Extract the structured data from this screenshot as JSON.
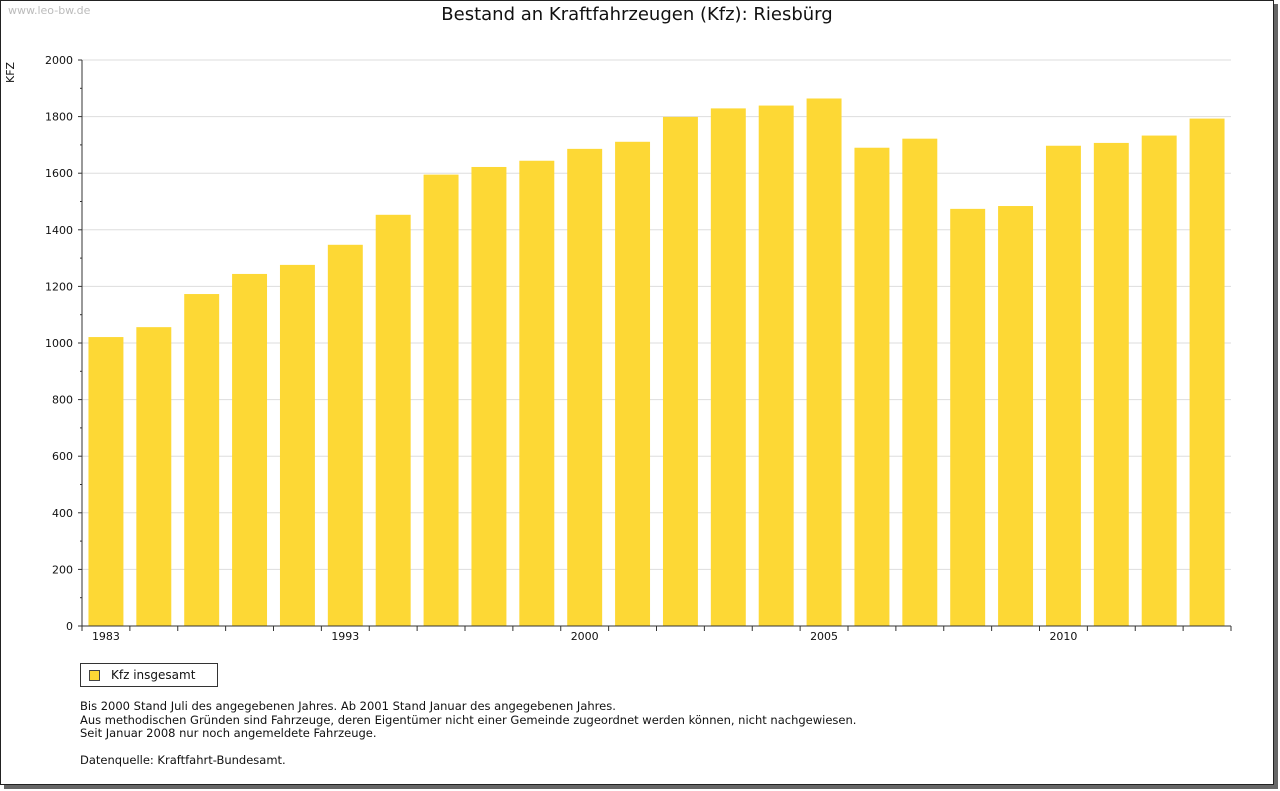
{
  "watermark": "www.leo-bw.de",
  "legend": {
    "label": "Kfz insgesamt"
  },
  "notes": [
    "Bis 2000 Stand Juli des angegebenen Jahres. Ab 2001 Stand Januar des angegebenen Jahres.",
    "Aus methodischen Gründen sind Fahrzeuge, deren Eigentümer nicht einer Gemeinde zugeordnet werden können, nicht nachgewiesen.",
    "Seit Januar 2008 nur noch angemeldete Fahrzeuge."
  ],
  "source": "Datenquelle: Kraftfahrt-Bundesamt.",
  "colors": {
    "bar": "#fdd835",
    "grid": "#dddddd",
    "axis": "#333333"
  },
  "chart_data": {
    "type": "bar",
    "title": "Bestand an Kraftfahrzeugen (Kfz): Riesbürg",
    "xlabel": "",
    "ylabel": "KFZ",
    "ylim": [
      0,
      2000
    ],
    "yticks": [
      0,
      200,
      400,
      600,
      800,
      1000,
      1200,
      1400,
      1600,
      1800,
      2000
    ],
    "grid": true,
    "legend_position": "bottom-left",
    "x_tick_labels": [
      "1983",
      "1993",
      "2000",
      "2005",
      "2010"
    ],
    "categories": [
      "1983",
      "1984",
      "1985",
      "1986",
      "1987",
      "1993",
      "1994",
      "1995",
      "1996",
      "1997",
      "2000",
      "2001",
      "2002",
      "2003",
      "2004",
      "2005",
      "2006",
      "2007",
      "2008",
      "2009",
      "2010",
      "2011",
      "2012",
      "2013"
    ],
    "series": [
      {
        "name": "Kfz insgesamt",
        "values": [
          1021,
          1056,
          1173,
          1244,
          1276,
          1347,
          1453,
          1595,
          1622,
          1644,
          1686,
          1711,
          1799,
          1829,
          1839,
          1864,
          1690,
          1722,
          1474,
          1484,
          1697,
          1707,
          1733,
          1793
        ]
      }
    ]
  }
}
